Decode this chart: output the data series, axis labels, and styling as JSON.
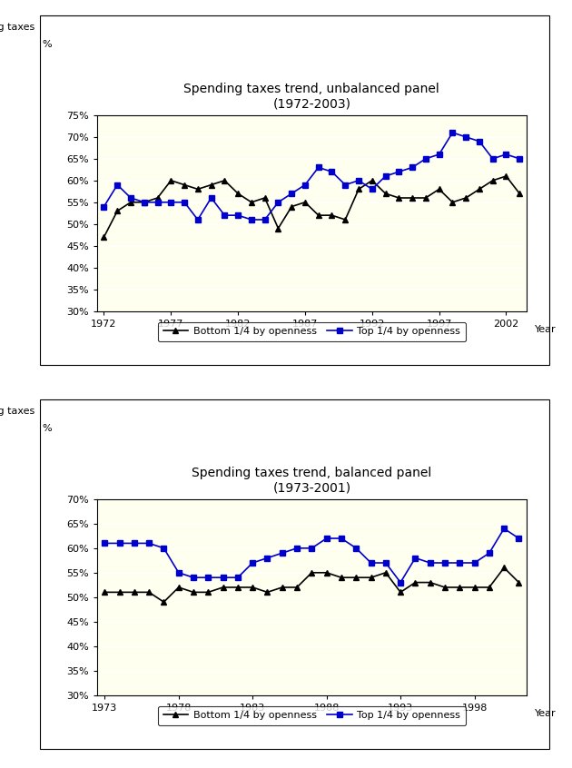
{
  "chart1": {
    "title": "Spending taxes trend, unbalanced panel\n(1972-2003)",
    "ylabel1": "Spending taxes",
    "ylabel2": "%",
    "xlabel": "Year",
    "bg_color": "#FFFFF0",
    "outer_bg": "#FFFFFF",
    "ylim": [
      0.3,
      0.75
    ],
    "yticks": [
      0.3,
      0.35,
      0.4,
      0.45,
      0.5,
      0.55,
      0.6,
      0.65,
      0.7,
      0.75
    ],
    "xticks": [
      1972,
      1977,
      1982,
      1987,
      1992,
      1997,
      2002
    ],
    "xlim": [
      1971.5,
      2003.5
    ],
    "bottom_x": [
      1972,
      1973,
      1974,
      1975,
      1976,
      1977,
      1978,
      1979,
      1980,
      1981,
      1982,
      1983,
      1984,
      1985,
      1986,
      1987,
      1988,
      1989,
      1990,
      1991,
      1992,
      1993,
      1994,
      1995,
      1996,
      1997,
      1998,
      1999,
      2000,
      2001,
      2002,
      2003
    ],
    "bottom_y": [
      0.47,
      0.53,
      0.55,
      0.55,
      0.56,
      0.6,
      0.59,
      0.58,
      0.59,
      0.6,
      0.57,
      0.55,
      0.56,
      0.49,
      0.54,
      0.55,
      0.52,
      0.52,
      0.51,
      0.58,
      0.6,
      0.57,
      0.56,
      0.56,
      0.56,
      0.58,
      0.55,
      0.56,
      0.58,
      0.6,
      0.61,
      0.57
    ],
    "top_x": [
      1972,
      1973,
      1974,
      1975,
      1976,
      1977,
      1978,
      1979,
      1980,
      1981,
      1982,
      1983,
      1984,
      1985,
      1986,
      1987,
      1988,
      1989,
      1990,
      1991,
      1992,
      1993,
      1994,
      1995,
      1996,
      1997,
      1998,
      1999,
      2000,
      2001,
      2002,
      2003
    ],
    "top_y": [
      0.54,
      0.59,
      0.56,
      0.55,
      0.55,
      0.55,
      0.55,
      0.51,
      0.56,
      0.52,
      0.52,
      0.51,
      0.51,
      0.55,
      0.57,
      0.59,
      0.63,
      0.62,
      0.59,
      0.6,
      0.58,
      0.61,
      0.62,
      0.63,
      0.65,
      0.66,
      0.71,
      0.7,
      0.69,
      0.65,
      0.66,
      0.65
    ]
  },
  "chart2": {
    "title": "Spending taxes trend, balanced panel\n(1973-2001)",
    "ylabel1": "Spending taxes",
    "ylabel2": "%",
    "xlabel": "Year",
    "bg_color": "#FFFFF0",
    "outer_bg": "#FFFFFF",
    "ylim": [
      0.3,
      0.7
    ],
    "yticks": [
      0.3,
      0.35,
      0.4,
      0.45,
      0.5,
      0.55,
      0.6,
      0.65,
      0.7
    ],
    "xticks": [
      1973,
      1978,
      1983,
      1988,
      1993,
      1998
    ],
    "xlim": [
      1972.5,
      2001.5
    ],
    "bottom_x": [
      1973,
      1974,
      1975,
      1976,
      1977,
      1978,
      1979,
      1980,
      1981,
      1982,
      1983,
      1984,
      1985,
      1986,
      1987,
      1988,
      1989,
      1990,
      1991,
      1992,
      1993,
      1994,
      1995,
      1996,
      1997,
      1998,
      1999,
      2000,
      2001
    ],
    "bottom_y": [
      0.51,
      0.51,
      0.51,
      0.51,
      0.49,
      0.52,
      0.51,
      0.51,
      0.52,
      0.52,
      0.52,
      0.51,
      0.52,
      0.52,
      0.55,
      0.55,
      0.54,
      0.54,
      0.54,
      0.55,
      0.51,
      0.53,
      0.53,
      0.52,
      0.52,
      0.52,
      0.52,
      0.56,
      0.53
    ],
    "top_x": [
      1973,
      1974,
      1975,
      1976,
      1977,
      1978,
      1979,
      1980,
      1981,
      1982,
      1983,
      1984,
      1985,
      1986,
      1987,
      1988,
      1989,
      1990,
      1991,
      1992,
      1993,
      1994,
      1995,
      1996,
      1997,
      1998,
      1999,
      2000,
      2001
    ],
    "top_y": [
      0.61,
      0.61,
      0.61,
      0.61,
      0.6,
      0.55,
      0.54,
      0.54,
      0.54,
      0.54,
      0.57,
      0.58,
      0.59,
      0.6,
      0.6,
      0.62,
      0.62,
      0.6,
      0.57,
      0.57,
      0.53,
      0.58,
      0.57,
      0.57,
      0.57,
      0.57,
      0.59,
      0.64,
      0.62
    ]
  },
  "line_color_bottom": "#000000",
  "line_color_top": "#0000CC",
  "legend_labels": [
    "Bottom 1/4 by openness",
    "Top 1/4 by openness"
  ],
  "fig_width": 6.3,
  "fig_height": 8.46,
  "fig_dpi": 100
}
